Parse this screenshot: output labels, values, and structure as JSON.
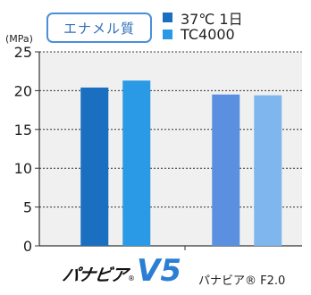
{
  "header": {
    "enamel_label": "エナメル質",
    "unit": "(MPa)"
  },
  "legend": [
    {
      "label": "37℃ 1日",
      "color": "#1a6fc0"
    },
    {
      "label": "TC4000",
      "color": "#2b9ae6"
    }
  ],
  "brands": {
    "v5_text": "パナビア",
    "v5_mark": "V5",
    "v5_reg": "®",
    "f2": "パナビア® F2.0"
  },
  "chart_data": {
    "type": "bar",
    "categories": [
      "パナビア® V5",
      "パナビア® F2.0"
    ],
    "series": [
      {
        "name": "37℃ 1日",
        "values": [
          20.4,
          19.5
        ]
      },
      {
        "name": "TC4000",
        "values": [
          21.3,
          19.4
        ]
      }
    ],
    "bar_colors": [
      [
        "#1a6fc0",
        "#2b9ae6"
      ],
      [
        "#5b8fe0",
        "#7fb6ee"
      ]
    ],
    "ylim": [
      0,
      25
    ],
    "yticks": [
      0,
      5,
      10,
      15,
      20,
      25
    ],
    "ylabel": "(MPa)",
    "grid": true,
    "legend_position": "top-right"
  }
}
